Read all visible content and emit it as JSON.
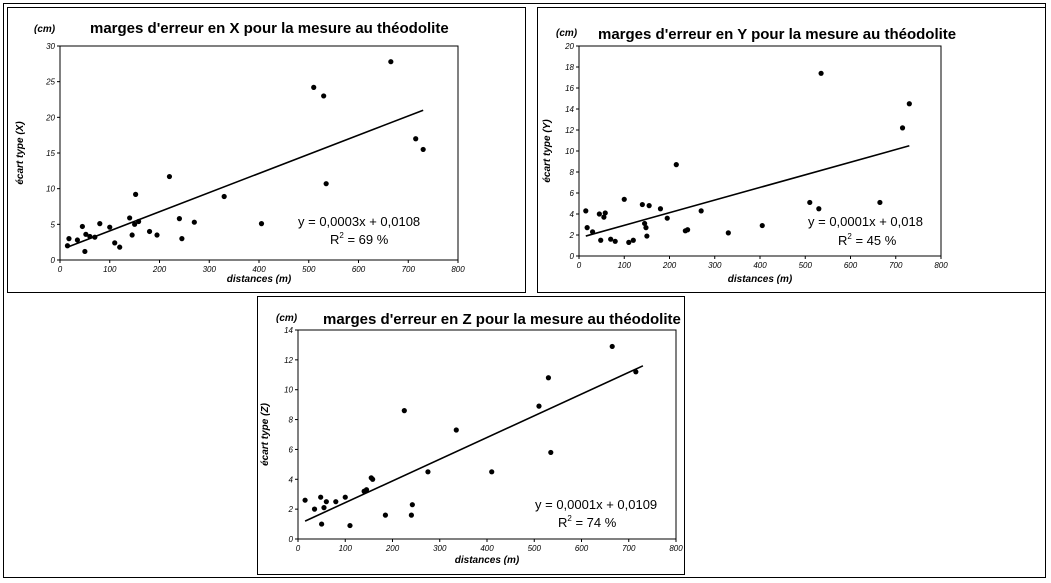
{
  "chart_data": [
    {
      "type": "scatter",
      "unit": "(cm)",
      "title": "marges d'erreur en X pour la mesure au théodolite",
      "xlabel": "distances (m)",
      "ylabel": "écart type (X)",
      "xlim": [
        0,
        800
      ],
      "ylim": [
        0,
        30
      ],
      "xticks": [
        0,
        100,
        200,
        300,
        400,
        500,
        600,
        700,
        800
      ],
      "yticks": [
        0,
        5,
        10,
        15,
        20,
        25,
        30
      ],
      "grid": false,
      "equation": "y = 0,0003x + 0,0108",
      "r2_label": "R",
      "r2_exp": "2",
      "r2_value": " = 69 %",
      "trendline": [
        [
          15,
          1.8
        ],
        [
          730,
          21.0
        ]
      ],
      "points": [
        [
          15,
          2.0
        ],
        [
          18,
          3.0
        ],
        [
          35,
          2.8
        ],
        [
          45,
          4.7
        ],
        [
          50,
          1.2
        ],
        [
          52,
          3.6
        ],
        [
          60,
          3.3
        ],
        [
          70,
          3.2
        ],
        [
          80,
          5.1
        ],
        [
          100,
          4.6
        ],
        [
          110,
          2.4
        ],
        [
          120,
          1.8
        ],
        [
          140,
          5.9
        ],
        [
          145,
          3.5
        ],
        [
          150,
          5.0
        ],
        [
          152,
          9.2
        ],
        [
          158,
          5.4
        ],
        [
          180,
          4.0
        ],
        [
          195,
          3.5
        ],
        [
          220,
          11.7
        ],
        [
          240,
          5.8
        ],
        [
          245,
          3.0
        ],
        [
          270,
          5.3
        ],
        [
          330,
          8.9
        ],
        [
          405,
          5.1
        ],
        [
          510,
          24.2
        ],
        [
          530,
          23.0
        ],
        [
          535,
          10.7
        ],
        [
          665,
          27.8
        ],
        [
          715,
          17.0
        ],
        [
          730,
          15.5
        ]
      ]
    },
    {
      "type": "scatter",
      "unit": "(cm)",
      "title": "marges d'erreur en Y pour la mesure au théodolite",
      "xlabel": "distances (m)",
      "ylabel": "écart type (Y)",
      "xlim": [
        0,
        800
      ],
      "ylim": [
        0,
        20
      ],
      "xticks": [
        0,
        100,
        200,
        300,
        400,
        500,
        600,
        700,
        800
      ],
      "yticks": [
        0,
        2,
        4,
        6,
        8,
        10,
        12,
        14,
        16,
        18,
        20
      ],
      "grid": false,
      "equation": "y = 0,0001x + 0,018",
      "r2_label": "R",
      "r2_exp": "2",
      "r2_value": " = 45 %",
      "trendline": [
        [
          15,
          1.9
        ],
        [
          730,
          10.5
        ]
      ],
      "points": [
        [
          15,
          4.3
        ],
        [
          18,
          2.7
        ],
        [
          30,
          2.3
        ],
        [
          45,
          4.0
        ],
        [
          48,
          1.5
        ],
        [
          55,
          3.7
        ],
        [
          58,
          4.1
        ],
        [
          70,
          1.6
        ],
        [
          80,
          1.4
        ],
        [
          100,
          5.4
        ],
        [
          110,
          1.3
        ],
        [
          120,
          1.5
        ],
        [
          140,
          4.9
        ],
        [
          145,
          3.1
        ],
        [
          148,
          2.7
        ],
        [
          150,
          1.9
        ],
        [
          155,
          4.8
        ],
        [
          180,
          4.5
        ],
        [
          195,
          3.6
        ],
        [
          215,
          8.7
        ],
        [
          235,
          2.4
        ],
        [
          240,
          2.5
        ],
        [
          270,
          4.3
        ],
        [
          330,
          2.2
        ],
        [
          405,
          2.9
        ],
        [
          510,
          5.1
        ],
        [
          530,
          4.5
        ],
        [
          535,
          17.4
        ],
        [
          665,
          5.1
        ],
        [
          715,
          12.2
        ],
        [
          730,
          14.5
        ]
      ]
    },
    {
      "type": "scatter",
      "unit": "(cm)",
      "title": "marges d'erreur en Z pour la mesure au théodolite",
      "xlabel": "distances (m)",
      "ylabel": "écart type (Z)",
      "xlim": [
        0,
        800
      ],
      "ylim": [
        0,
        14
      ],
      "xticks": [
        0,
        100,
        200,
        300,
        400,
        500,
        600,
        700,
        800
      ],
      "yticks": [
        0,
        2,
        4,
        6,
        8,
        10,
        12,
        14
      ],
      "grid": false,
      "equation": "y = 0,0001x + 0,0109",
      "r2_label": "R",
      "r2_exp": "2",
      "r2_value": " = 74 %",
      "trendline": [
        [
          15,
          1.2
        ],
        [
          730,
          11.6
        ]
      ],
      "points": [
        [
          15,
          2.6
        ],
        [
          35,
          2.0
        ],
        [
          48,
          2.8
        ],
        [
          50,
          1.0
        ],
        [
          55,
          2.1
        ],
        [
          60,
          2.5
        ],
        [
          80,
          2.5
        ],
        [
          100,
          2.8
        ],
        [
          110,
          0.9
        ],
        [
          140,
          3.2
        ],
        [
          145,
          3.3
        ],
        [
          155,
          4.1
        ],
        [
          158,
          4.0
        ],
        [
          185,
          1.6
        ],
        [
          225,
          8.6
        ],
        [
          240,
          1.6
        ],
        [
          242,
          2.3
        ],
        [
          275,
          4.5
        ],
        [
          335,
          7.3
        ],
        [
          410,
          4.5
        ],
        [
          510,
          8.9
        ],
        [
          530,
          10.8
        ],
        [
          535,
          5.8
        ],
        [
          665,
          12.9
        ],
        [
          715,
          11.2
        ]
      ]
    }
  ]
}
